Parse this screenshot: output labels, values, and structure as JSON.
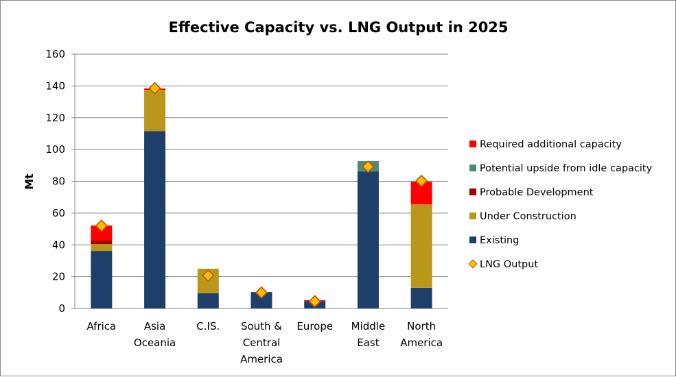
{
  "chart_data": {
    "type": "bar",
    "stacked": true,
    "title": "Effective Capacity vs. LNG Output in 2025",
    "xlabel": "",
    "ylabel": "Mt",
    "ylim": [
      0,
      160
    ],
    "yticks": [
      0,
      20,
      40,
      60,
      80,
      100,
      120,
      140,
      160
    ],
    "grid": true,
    "legend_position": "right",
    "categories": [
      [
        "Africa"
      ],
      [
        "Asia",
        "Oceania"
      ],
      [
        "C.IS."
      ],
      [
        "South &",
        "Central",
        "America"
      ],
      [
        "Europe"
      ],
      [
        "Middle",
        "East"
      ],
      [
        "North",
        "America"
      ]
    ],
    "series": [
      {
        "name": "Existing",
        "color": "#1F3F6B",
        "values": [
          36.2,
          111.6,
          9.5,
          10.3,
          4.7,
          86.2,
          13.0
        ]
      },
      {
        "name": "Under Construction",
        "color": "#B8971A",
        "values": [
          4.3,
          25.9,
          15.5,
          0,
          0,
          0,
          52.5
        ]
      },
      {
        "name": "Probable Development",
        "color": "#A50000",
        "values": [
          2.2,
          0,
          0,
          0,
          0,
          0,
          0
        ]
      },
      {
        "name": "Potential upside from idle capacity",
        "color": "#4F8A74",
        "values": [
          0,
          0,
          0,
          0,
          0,
          6.5,
          0
        ]
      },
      {
        "name": "Required additional capacity",
        "color": "#FF0000",
        "values": [
          9.5,
          0.9,
          0,
          0,
          0.5,
          0,
          14.2
        ]
      }
    ],
    "line_series": {
      "name": "LNG Output",
      "marker": "diamond",
      "fill": "#FFC000",
      "stroke": "#C55A11",
      "values": [
        52.0,
        138.5,
        20.7,
        10.0,
        4.5,
        89.2,
        80.2
      ]
    },
    "legend": [
      {
        "name": "Required additional capacity",
        "kind": "square",
        "color": "#FF0000"
      },
      {
        "name": "Potential upside from idle capacity",
        "kind": "square",
        "color": "#4F8A74"
      },
      {
        "name": "Probable Development",
        "kind": "square",
        "color": "#A50000"
      },
      {
        "name": "Under Construction",
        "kind": "square",
        "color": "#B8971A"
      },
      {
        "name": "Existing",
        "kind": "square",
        "color": "#1F3F6B"
      },
      {
        "name": "LNG Output",
        "kind": "diamond",
        "color": "#FFC000"
      }
    ]
  }
}
